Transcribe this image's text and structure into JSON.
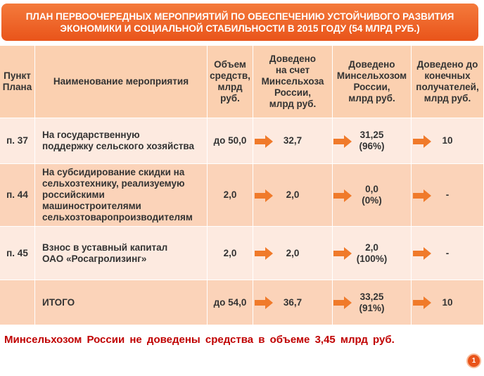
{
  "header": {
    "title": "ПЛАН ПЕРВООЧЕРЕДНЫХ МЕРОПРИЯТИЙ ПО ОБЕСПЕЧЕНИЮ УСТОЙЧИВОГО РАЗВИТИЯ\nЭКОНОМИКИ И СОЦИАЛЬНОЙ СТАБИЛЬНОСТИ В 2015 ГОДУ (54 МЛРД РУБ.)"
  },
  "table": {
    "columns": [
      "Пункт\nПлана",
      "Наименование мероприятия",
      "Объем\nсредств,\nмлрд\nруб.",
      "Доведено\nна счет\nМинсельхоза\nРоссии,\nмлрд руб.",
      "Доведено\nМинсельхозом\nРоссии,\nмлрд руб.",
      "Доведено до\nконечных\nполучателей,\nмлрд руб."
    ],
    "rows": [
      [
        "п. 37",
        "На государственную\nподдержку сельского хозяйства",
        "до 50,0",
        "32,7",
        "31,25\n(96%)",
        "10"
      ],
      [
        "п. 44",
        "На субсидирование скидки на\nсельхозтехнику, реализуемую\nроссийскими\nмашиностроителями\nсельхозтоваропроизводителям",
        "2,0",
        "2,0",
        "0,0\n(0%)",
        "-"
      ],
      [
        "п. 45",
        "Взнос в уставный капитал\nОАО «Росагролизинг»",
        "2,0",
        "2,0",
        "2,0\n(100%)",
        "-"
      ],
      [
        "",
        "ИТОГО",
        "до 54,0",
        "36,7",
        "33,25\n(91%)",
        "10"
      ]
    ]
  },
  "footnote": "Минсельхозом России не доведены средства в объеме 3,45 млрд руб.",
  "page_number": "1"
}
